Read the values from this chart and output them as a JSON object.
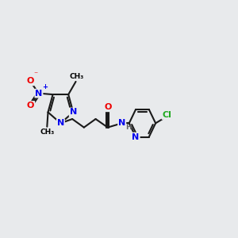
{
  "bg_color": "#e8eaec",
  "bond_color": "#1a1a1a",
  "bond_width": 1.5,
  "atom_colors": {
    "C": "#000000",
    "N": "#0000ee",
    "O": "#ee0000",
    "Cl": "#22aa22",
    "H": "#666666"
  },
  "font_size": 8.0,
  "small_font": 6.5,
  "charge_font": 6.0
}
